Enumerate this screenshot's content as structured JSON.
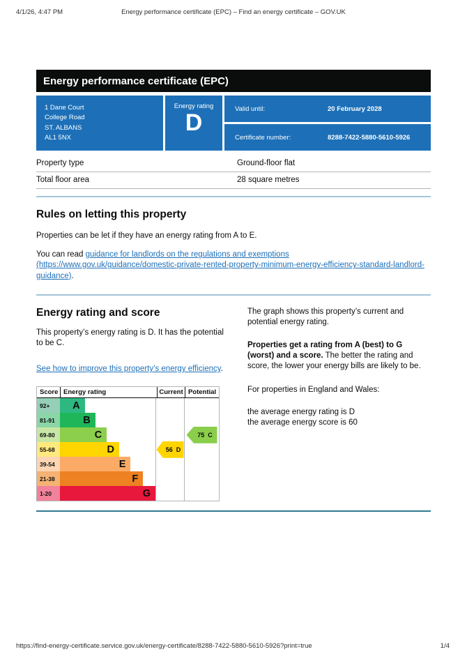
{
  "print_header": {
    "datetime": "4/1/26, 4:47 PM",
    "title": "Energy performance certificate (EPC) – Find an energy certificate – GOV.UK"
  },
  "print_footer": {
    "url": "https://find-energy-certificate.service.gov.uk/energy-certificate/8288-7422-5880-5610-5926?print=true",
    "page": "1/4"
  },
  "banner": {
    "title": "Energy performance certificate (EPC)"
  },
  "summary": {
    "panel_color": "#1d70b8",
    "address_lines": [
      "1 Dane Court",
      "College Road",
      "ST. ALBANS",
      "AL1 5NX"
    ],
    "rating_label": "Energy rating",
    "rating_value": "D",
    "valid_until_label": "Valid until:",
    "valid_until_value": "20 February 2028",
    "certificate_number_label": "Certificate number:",
    "certificate_number_value": "8288-7422-5880-5610-5926"
  },
  "property_facts": {
    "rows": [
      {
        "label": "Property type",
        "value": "Ground-floor flat"
      },
      {
        "label": "Total floor area",
        "value": "28 square metres"
      }
    ]
  },
  "rules_section": {
    "heading": "Rules on letting this property",
    "paragraph1": "Properties can be let if they have an energy rating from A to E.",
    "paragraph2_prefix": "You can read ",
    "paragraph2_link": "guidance for landlords on the regulations and exemptions (https://www.gov.uk/guidance/domestic-private-rented-property-minimum-energy-efficiency-standard-landlord-guidance)",
    "paragraph2_suffix": "."
  },
  "rating_section": {
    "heading": "Energy rating and score",
    "intro": "This property’s energy rating is D. It has the potential to be C.",
    "improve_link": "See how to improve this property’s energy efficiency",
    "improve_suffix": ".",
    "right": {
      "p1": "The graph shows this property’s current and potential energy rating.",
      "p2_bold": "Properties get a rating from A (best) to G (worst) and a score.",
      "p2_rest": " The better the rating and score, the lower your energy bills are likely to be.",
      "p3": "For properties in England and Wales:",
      "p4_line1": "the average energy rating is D",
      "p4_line2": "the average energy score is 60"
    }
  },
  "chart_data": {
    "type": "bar",
    "subtype": "epc-energy-rating-bands",
    "headers": {
      "score": "Score",
      "rating": "Energy rating",
      "current": "Current",
      "potential": "Potential"
    },
    "bands": [
      {
        "score_range": "92+",
        "letter": "A",
        "color": "#2eb881",
        "tint": "#96cfb7",
        "width_pct": 26
      },
      {
        "score_range": "81-91",
        "letter": "B",
        "color": "#1fb65a",
        "tint": "#8bd6a7",
        "width_pct": 37
      },
      {
        "score_range": "69-80",
        "letter": "C",
        "color": "#8ccf4c",
        "tint": "#c8e7a6",
        "width_pct": 49
      },
      {
        "score_range": "55-68",
        "letter": "D",
        "color": "#ffd500",
        "tint": "#ffe97e",
        "width_pct": 62
      },
      {
        "score_range": "39-54",
        "letter": "E",
        "color": "#fbab66",
        "tint": "#fdd5b2",
        "width_pct": 74
      },
      {
        "score_range": "21-38",
        "letter": "F",
        "color": "#ee8122",
        "tint": "#f5b273",
        "width_pct": 87
      },
      {
        "score_range": "1-20",
        "letter": "G",
        "color": "#e8173c",
        "tint": "#f2829b",
        "width_pct": 100
      }
    ],
    "current": {
      "score": "56",
      "letter": "D",
      "band_index": 3,
      "color": "#ffd500"
    },
    "potential": {
      "score": "75",
      "letter": "C",
      "band_index": 2,
      "color": "#8ace4b"
    }
  },
  "colors": {
    "govuk_blue": "#1d70b8",
    "banner_black": "#0b0c0c",
    "link": "#1d70b8"
  }
}
